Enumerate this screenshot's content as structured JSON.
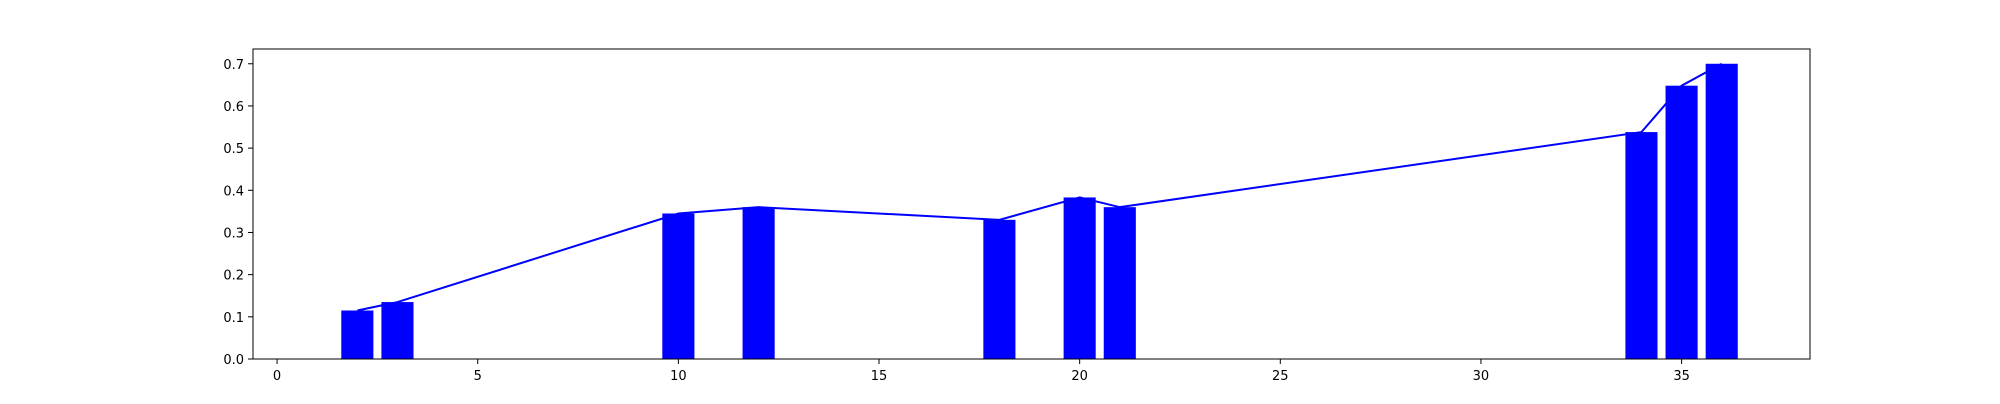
{
  "chart_data": {
    "type": "bar",
    "title": "",
    "xlabel": "",
    "ylabel": "",
    "xlim": [
      -0.6,
      38.2
    ],
    "ylim": [
      0.0,
      0.735
    ],
    "x_ticks": [
      0,
      5,
      10,
      15,
      20,
      25,
      30,
      35
    ],
    "y_ticks": [
      0.0,
      0.1,
      0.2,
      0.3,
      0.4,
      0.5,
      0.6,
      0.7
    ],
    "x_tick_labels": [
      "0",
      "5",
      "10",
      "15",
      "20",
      "25",
      "30",
      "35"
    ],
    "y_tick_labels": [
      "0.0",
      "0.1",
      "0.2",
      "0.3",
      "0.4",
      "0.5",
      "0.6",
      "0.7"
    ],
    "grid": false,
    "legend": "none",
    "bar_width": 0.8,
    "color": "#0000ff",
    "series": [
      {
        "type": "bar",
        "x": [
          2,
          3,
          10,
          12,
          18,
          20,
          21,
          34,
          35,
          36
        ],
        "values": [
          0.115,
          0.135,
          0.345,
          0.36,
          0.33,
          0.383,
          0.36,
          0.538,
          0.648,
          0.7
        ]
      },
      {
        "type": "line",
        "x": [
          2,
          3,
          10,
          12,
          18,
          20,
          21,
          34,
          35,
          36
        ],
        "values": [
          0.115,
          0.135,
          0.345,
          0.36,
          0.33,
          0.383,
          0.36,
          0.538,
          0.648,
          0.7
        ]
      }
    ]
  }
}
